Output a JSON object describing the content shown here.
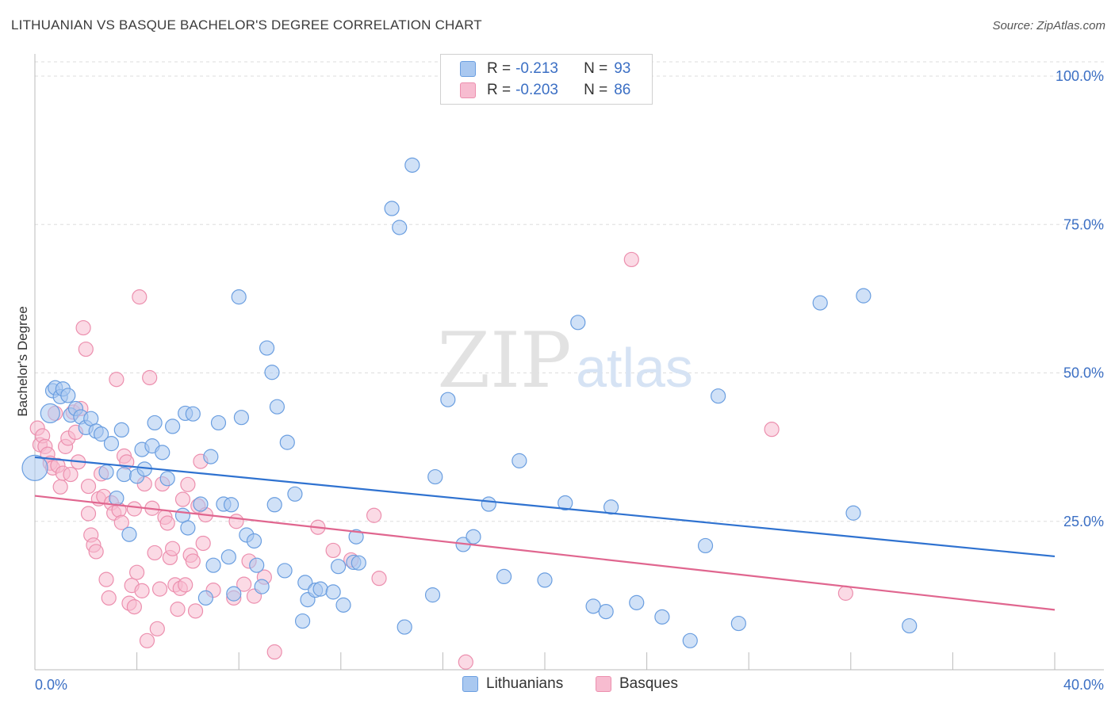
{
  "header": {
    "title": "LITHUANIAN VS BASQUE BACHELOR'S DEGREE CORRELATION CHART",
    "source": "Source: ZipAtlas.com"
  },
  "legend": {
    "series1": {
      "r_label": "R =",
      "r_value": "-0.213",
      "n_label": "N =",
      "n_value": "93"
    },
    "series2": {
      "r_label": "R =",
      "r_value": "-0.203",
      "n_label": "N =",
      "n_value": "86"
    }
  },
  "bottom_legend": {
    "series1": "Lithuanians",
    "series2": "Basques"
  },
  "watermark": {
    "zip": "ZIP",
    "atlas": "atlas"
  },
  "colors": {
    "blue_fill": "#a9c8f0",
    "blue_stroke": "#6a9ee0",
    "blue_line": "#2f72d0",
    "pink_fill": "#f7bcd0",
    "pink_stroke": "#ec8fae",
    "pink_line": "#e0668f",
    "axis_text": "#3b6fc4",
    "grid": "#dddddd"
  },
  "chart_data": {
    "type": "scatter",
    "title": "LITHUANIAN VS BASQUE BACHELOR'S DEGREE CORRELATION CHART",
    "xlabel": "",
    "ylabel": "Bachelor's Degree",
    "xlim": [
      0,
      40
    ],
    "ylim": [
      0,
      105
    ],
    "x_tick_labels": [
      "0.0%",
      "40.0%"
    ],
    "y_ticks": [
      25,
      50,
      75,
      100
    ],
    "y_tick_labels": [
      "25.0%",
      "50.0%",
      "75.0%",
      "100.0%"
    ],
    "grid": true,
    "legend_position": "top-center",
    "series": [
      {
        "name": "Lithuanians",
        "r": -0.213,
        "n": 93,
        "trend": {
          "x": [
            0,
            40
          ],
          "y": [
            35.8,
            19.1
          ]
        },
        "points": [
          [
            0.0,
            34.0
          ],
          [
            0.6,
            43.2
          ],
          [
            0.7,
            47.0
          ],
          [
            0.8,
            47.5
          ],
          [
            1.0,
            46.0
          ],
          [
            1.1,
            47.3
          ],
          [
            1.3,
            46.2
          ],
          [
            1.4,
            42.9
          ],
          [
            1.6,
            44.0
          ],
          [
            1.8,
            42.6
          ],
          [
            2.0,
            40.8
          ],
          [
            2.2,
            42.3
          ],
          [
            2.4,
            40.2
          ],
          [
            2.6,
            39.7
          ],
          [
            2.8,
            33.3
          ],
          [
            3.0,
            38.1
          ],
          [
            3.2,
            28.9
          ],
          [
            3.4,
            40.4
          ],
          [
            3.5,
            32.9
          ],
          [
            3.7,
            22.8
          ],
          [
            4.0,
            32.6
          ],
          [
            4.2,
            37.1
          ],
          [
            4.3,
            33.8
          ],
          [
            4.6,
            37.7
          ],
          [
            4.7,
            41.6
          ],
          [
            5.0,
            36.6
          ],
          [
            5.2,
            32.2
          ],
          [
            5.4,
            41.0
          ],
          [
            5.8,
            26.0
          ],
          [
            5.9,
            43.2
          ],
          [
            6.0,
            23.9
          ],
          [
            6.2,
            43.1
          ],
          [
            6.5,
            27.9
          ],
          [
            6.7,
            12.1
          ],
          [
            6.9,
            35.9
          ],
          [
            7.0,
            17.6
          ],
          [
            7.2,
            41.6
          ],
          [
            7.4,
            27.9
          ],
          [
            7.6,
            19.0
          ],
          [
            7.8,
            12.8
          ],
          [
            8.0,
            62.8
          ],
          [
            8.1,
            42.5
          ],
          [
            8.3,
            22.7
          ],
          [
            8.6,
            21.7
          ],
          [
            8.7,
            17.6
          ],
          [
            8.9,
            14.0
          ],
          [
            9.1,
            54.2
          ],
          [
            9.3,
            50.1
          ],
          [
            9.4,
            27.8
          ],
          [
            9.5,
            44.3
          ],
          [
            9.8,
            16.7
          ],
          [
            9.9,
            38.3
          ],
          [
            10.2,
            29.6
          ],
          [
            10.5,
            8.2
          ],
          [
            10.6,
            14.7
          ],
          [
            10.7,
            11.8
          ],
          [
            11.0,
            13.4
          ],
          [
            11.2,
            13.6
          ],
          [
            11.7,
            13.1
          ],
          [
            11.9,
            17.4
          ],
          [
            12.1,
            10.9
          ],
          [
            12.5,
            18.1
          ],
          [
            12.6,
            22.4
          ],
          [
            14.0,
            77.7
          ],
          [
            14.3,
            74.5
          ],
          [
            14.5,
            7.2
          ],
          [
            14.8,
            85.0
          ],
          [
            15.6,
            12.6
          ],
          [
            15.7,
            32.5
          ],
          [
            16.2,
            45.5
          ],
          [
            16.8,
            21.1
          ],
          [
            17.2,
            22.4
          ],
          [
            17.8,
            27.9
          ],
          [
            18.4,
            15.7
          ],
          [
            19.0,
            35.2
          ],
          [
            20.0,
            15.1
          ],
          [
            20.8,
            28.1
          ],
          [
            21.3,
            58.5
          ],
          [
            21.9,
            10.7
          ],
          [
            22.4,
            9.8
          ],
          [
            22.6,
            27.4
          ],
          [
            23.6,
            11.3
          ],
          [
            24.6,
            8.9
          ],
          [
            25.7,
            4.9
          ],
          [
            26.3,
            20.9
          ],
          [
            26.8,
            46.1
          ],
          [
            27.6,
            7.8
          ],
          [
            30.8,
            61.8
          ],
          [
            32.1,
            26.4
          ],
          [
            32.5,
            63.0
          ],
          [
            34.3,
            7.4
          ],
          [
            12.7,
            18.0
          ],
          [
            7.7,
            27.8
          ]
        ]
      },
      {
        "name": "Basques",
        "r": -0.203,
        "n": 86,
        "trend": {
          "x": [
            0,
            40
          ],
          "y": [
            29.3,
            10.1
          ]
        },
        "points": [
          [
            0.1,
            40.7
          ],
          [
            0.2,
            37.9
          ],
          [
            0.3,
            39.4
          ],
          [
            0.4,
            37.6
          ],
          [
            0.5,
            36.3
          ],
          [
            0.6,
            34.8
          ],
          [
            0.7,
            34.0
          ],
          [
            0.8,
            43.2
          ],
          [
            0.9,
            34.4
          ],
          [
            1.0,
            30.8
          ],
          [
            1.1,
            33.1
          ],
          [
            1.2,
            37.6
          ],
          [
            1.3,
            39.0
          ],
          [
            1.4,
            32.9
          ],
          [
            1.5,
            43.4
          ],
          [
            1.6,
            40.0
          ],
          [
            1.7,
            35.0
          ],
          [
            1.8,
            44.0
          ],
          [
            1.9,
            57.6
          ],
          [
            2.0,
            54.0
          ],
          [
            2.1,
            30.9
          ],
          [
            2.2,
            22.7
          ],
          [
            2.3,
            21.0
          ],
          [
            2.4,
            19.9
          ],
          [
            2.5,
            28.8
          ],
          [
            2.6,
            33.0
          ],
          [
            2.7,
            29.2
          ],
          [
            2.8,
            15.2
          ],
          [
            2.9,
            12.1
          ],
          [
            3.0,
            28.1
          ],
          [
            3.1,
            26.4
          ],
          [
            3.2,
            48.9
          ],
          [
            3.3,
            26.9
          ],
          [
            3.4,
            24.8
          ],
          [
            3.5,
            36.0
          ],
          [
            3.6,
            35.0
          ],
          [
            3.7,
            11.2
          ],
          [
            3.8,
            14.2
          ],
          [
            3.9,
            10.6
          ],
          [
            4.0,
            16.4
          ],
          [
            4.1,
            62.8
          ],
          [
            4.2,
            13.3
          ],
          [
            4.3,
            31.3
          ],
          [
            4.4,
            4.9
          ],
          [
            4.5,
            49.2
          ],
          [
            4.6,
            27.2
          ],
          [
            4.7,
            19.7
          ],
          [
            4.8,
            6.9
          ],
          [
            4.9,
            13.6
          ],
          [
            5.0,
            31.3
          ],
          [
            5.1,
            25.7
          ],
          [
            5.2,
            24.7
          ],
          [
            5.3,
            18.9
          ],
          [
            5.4,
            20.4
          ],
          [
            5.5,
            14.3
          ],
          [
            5.6,
            10.2
          ],
          [
            5.7,
            13.7
          ],
          [
            5.8,
            28.7
          ],
          [
            5.9,
            14.3
          ],
          [
            6.0,
            31.2
          ],
          [
            6.1,
            19.3
          ],
          [
            6.2,
            18.3
          ],
          [
            6.3,
            9.9
          ],
          [
            6.4,
            27.6
          ],
          [
            6.5,
            35.1
          ],
          [
            6.6,
            21.3
          ],
          [
            6.7,
            26.1
          ],
          [
            7.0,
            13.4
          ],
          [
            7.8,
            12.1
          ],
          [
            7.9,
            25.0
          ],
          [
            8.2,
            14.4
          ],
          [
            8.4,
            18.3
          ],
          [
            8.6,
            12.4
          ],
          [
            9.0,
            15.6
          ],
          [
            9.4,
            3.0
          ],
          [
            11.1,
            24.0
          ],
          [
            11.7,
            20.1
          ],
          [
            12.4,
            18.5
          ],
          [
            13.3,
            26.0
          ],
          [
            13.5,
            15.4
          ],
          [
            16.9,
            1.3
          ],
          [
            23.4,
            69.1
          ],
          [
            28.9,
            40.5
          ],
          [
            31.8,
            12.9
          ],
          [
            3.9,
            27.1
          ],
          [
            2.1,
            26.3
          ]
        ]
      }
    ]
  }
}
